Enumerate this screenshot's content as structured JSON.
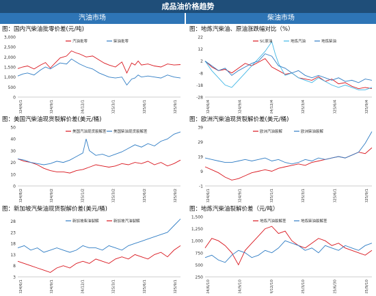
{
  "title": "成品油价格趋势",
  "sections": {
    "left": "汽油市场",
    "right": "柴油市场"
  },
  "colors": {
    "red": "#d9141c",
    "blue": "#2e7cc4",
    "lightblue": "#3fb6e6",
    "header": "#1f4e79",
    "subheader": "#2e75b6"
  },
  "chart_data": [
    {
      "id": "p1",
      "type": "line",
      "title": "图：国内汽柴油批零价差(元/吨)",
      "x_ticks": [
        "2024/6/1",
        "2024/9/1",
        "2024/12/1",
        "2025/3/1",
        "2025/6/1",
        "2025/9/1"
      ],
      "y_ticks": [
        "0",
        "500",
        "1,000",
        "1,500",
        "2,000",
        "2,500",
        "3,000"
      ],
      "ylim": [
        0,
        3000
      ],
      "x_range": [
        0,
        1
      ],
      "legend": [
        "汽油批零",
        "柴油批零"
      ],
      "series": [
        {
          "name": "汽油批零",
          "color": "#d9141c",
          "x": [
            0,
            0.03,
            0.06,
            0.1,
            0.14,
            0.17,
            0.2,
            0.23,
            0.26,
            0.3,
            0.33,
            0.36,
            0.38,
            0.42,
            0.46,
            0.5,
            0.53,
            0.56,
            0.6,
            0.64,
            0.67,
            0.7,
            0.72,
            0.74,
            0.76,
            0.8,
            0.84,
            0.88,
            0.92,
            0.96,
            1.0
          ],
          "y": [
            1420,
            1500,
            1550,
            1400,
            1600,
            1720,
            1450,
            1700,
            1950,
            2050,
            2300,
            2200,
            2150,
            2000,
            2050,
            1850,
            1700,
            1600,
            1500,
            1750,
            1200,
            1700,
            1600,
            1800,
            1600,
            1650,
            1550,
            1500,
            1650,
            1600,
            1620
          ]
        },
        {
          "name": "柴油批零",
          "color": "#2e7cc4",
          "x": [
            0,
            0.03,
            0.06,
            0.1,
            0.14,
            0.17,
            0.2,
            0.23,
            0.26,
            0.3,
            0.33,
            0.36,
            0.38,
            0.42,
            0.46,
            0.5,
            0.53,
            0.56,
            0.6,
            0.64,
            0.67,
            0.7,
            0.72,
            0.74,
            0.76,
            0.8,
            0.84,
            0.88,
            0.92,
            0.96,
            1.0
          ],
          "y": [
            1050,
            1150,
            1200,
            1100,
            1350,
            1500,
            1400,
            1550,
            1700,
            1650,
            1900,
            1750,
            1650,
            1500,
            1400,
            1200,
            1100,
            1000,
            950,
            1000,
            600,
            900,
            950,
            1100,
            1000,
            1050,
            1000,
            950,
            1100,
            1000,
            950
          ]
        }
      ]
    },
    {
      "id": "p2",
      "type": "line",
      "title": "图：地炼汽柴油、原油涨跌幅对比（%）",
      "x_ticks": [
        "2024/6/4",
        "2024/9/4",
        "2024/12/4",
        "2025/3/4",
        "2025/6/4",
        "2025/9/4"
      ],
      "y_ticks": [
        "-28",
        "-18",
        "-8",
        "2",
        "12",
        "22"
      ],
      "ylim": [
        -28,
        22
      ],
      "x_range": [
        0,
        1
      ],
      "legend": [
        "SC原油",
        "地炼汽油",
        "地炼柴油"
      ],
      "series": [
        {
          "name": "SC原油",
          "color": "#d9141c",
          "x": [
            0,
            0.04,
            0.08,
            0.12,
            0.16,
            0.2,
            0.24,
            0.28,
            0.32,
            0.36,
            0.4,
            0.44,
            0.48,
            0.52,
            0.56,
            0.6,
            0.64,
            0.68,
            0.72,
            0.76,
            0.8,
            0.84,
            0.88,
            0.92,
            0.96,
            1.0
          ],
          "y": [
            2,
            -3,
            -6,
            -5,
            -8,
            -4,
            0,
            -2,
            1,
            4,
            -3,
            -6,
            -9,
            -8,
            -12,
            -13,
            -14,
            -11,
            -15,
            -13,
            -17,
            -16,
            -19,
            -21,
            -20,
            -21
          ]
        },
        {
          "name": "地炼汽油",
          "color": "#3fb6e6",
          "x": [
            0,
            0.04,
            0.08,
            0.12,
            0.16,
            0.2,
            0.24,
            0.28,
            0.32,
            0.36,
            0.4,
            0.42,
            0.44,
            0.48,
            0.52,
            0.56,
            0.6,
            0.64,
            0.68,
            0.72,
            0.76,
            0.8,
            0.84,
            0.88,
            0.92,
            0.96,
            1.0
          ],
          "y": [
            2,
            -6,
            -12,
            -18,
            -20,
            -14,
            -8,
            -2,
            4,
            10,
            18,
            8,
            0,
            -10,
            -8,
            -12,
            -14,
            -16,
            -12,
            -15,
            -18,
            -20,
            -18,
            -20,
            -22,
            -22,
            -20
          ]
        },
        {
          "name": "地炼柴油",
          "color": "#2e7cc4",
          "x": [
            0,
            0.04,
            0.08,
            0.12,
            0.16,
            0.2,
            0.24,
            0.28,
            0.32,
            0.36,
            0.4,
            0.44,
            0.48,
            0.52,
            0.56,
            0.6,
            0.64,
            0.68,
            0.72,
            0.76,
            0.8,
            0.84,
            0.88,
            0.92,
            0.96,
            1.0
          ],
          "y": [
            2,
            -2,
            -6,
            -4,
            -10,
            -6,
            -3,
            0,
            2,
            8,
            6,
            -2,
            -4,
            -8,
            -6,
            -10,
            -12,
            -10,
            -12,
            -14,
            -12,
            -15,
            -14,
            -16,
            -13,
            -14
          ]
        }
      ]
    },
    {
      "id": "p3",
      "type": "line",
      "title": "图：美国汽柴油现货裂解价差(美元/桶)",
      "x_ticks": [
        "2024/8/2",
        "2024/9/2",
        "2025/1/2",
        "2025/3/2",
        "2025/6/2",
        "2025/9/2"
      ],
      "y_ticks": [
        "0",
        "10",
        "20",
        "30",
        "40",
        "50"
      ],
      "ylim": [
        0,
        50
      ],
      "x_range": [
        0,
        1
      ],
      "legend": [
        "美国汽油现货裂解差",
        "美国柴油现货裂解差"
      ],
      "series": [
        {
          "name": "美国汽油现货裂解差",
          "color": "#d9141c",
          "x": [
            0,
            0.04,
            0.08,
            0.12,
            0.16,
            0.2,
            0.24,
            0.28,
            0.32,
            0.36,
            0.4,
            0.44,
            0.48,
            0.52,
            0.56,
            0.6,
            0.64,
            0.68,
            0.72,
            0.76,
            0.8,
            0.84,
            0.88,
            0.92,
            0.96,
            1.0
          ],
          "y": [
            23,
            21,
            20,
            18,
            15,
            13,
            12,
            12,
            11,
            13,
            14,
            16,
            18,
            17,
            16,
            17,
            19,
            18,
            20,
            19,
            21,
            18,
            20,
            17,
            19,
            22
          ]
        },
        {
          "name": "美国柴油现货裂解差",
          "color": "#2e7cc4",
          "x": [
            0,
            0.04,
            0.08,
            0.12,
            0.16,
            0.2,
            0.24,
            0.28,
            0.32,
            0.36,
            0.4,
            0.42,
            0.44,
            0.48,
            0.52,
            0.56,
            0.6,
            0.64,
            0.68,
            0.72,
            0.76,
            0.8,
            0.84,
            0.88,
            0.92,
            0.96,
            1.0
          ],
          "y": [
            23,
            22,
            20,
            19,
            18,
            19,
            21,
            20,
            22,
            25,
            28,
            40,
            30,
            26,
            27,
            25,
            27,
            29,
            32,
            35,
            33,
            36,
            34,
            38,
            40,
            44,
            46
          ]
        }
      ]
    },
    {
      "id": "p4",
      "type": "line",
      "title": "图：欧洲汽柴油现货裂解价差(美元/桶)",
      "x_ticks": [
        "2024/6/1",
        "2024/9/1",
        "2025/1/1",
        "2025/3/1",
        "2025/6/1",
        "2025/9/1"
      ],
      "y_ticks": [
        "-1",
        "9",
        "19",
        "29",
        "39"
      ],
      "ylim": [
        -1,
        39
      ],
      "x_range": [
        0,
        1
      ],
      "legend": [
        "欧洲汽油裂解",
        "欧洲柴油裂解"
      ],
      "series": [
        {
          "name": "欧洲汽油裂解",
          "color": "#d9141c",
          "x": [
            0,
            0.04,
            0.08,
            0.12,
            0.16,
            0.2,
            0.24,
            0.28,
            0.32,
            0.36,
            0.4,
            0.44,
            0.48,
            0.52,
            0.56,
            0.6,
            0.64,
            0.68,
            0.72,
            0.76,
            0.8,
            0.84,
            0.88,
            0.92,
            0.96,
            1.0
          ],
          "y": [
            12,
            10,
            8,
            5,
            3,
            4,
            6,
            8,
            9,
            10,
            9,
            11,
            12,
            13,
            14,
            13,
            15,
            16,
            17,
            18,
            19,
            18,
            20,
            22,
            21,
            25
          ]
        },
        {
          "name": "欧洲柴油裂解",
          "color": "#2e7cc4",
          "x": [
            0,
            0.04,
            0.08,
            0.12,
            0.16,
            0.2,
            0.24,
            0.28,
            0.32,
            0.36,
            0.4,
            0.44,
            0.48,
            0.52,
            0.56,
            0.6,
            0.64,
            0.68,
            0.72,
            0.76,
            0.8,
            0.84,
            0.88,
            0.92,
            0.96,
            1.0
          ],
          "y": [
            18,
            17,
            16,
            15,
            15,
            16,
            17,
            16,
            17,
            18,
            16,
            17,
            15,
            14,
            15,
            17,
            16,
            18,
            17,
            18,
            19,
            18,
            20,
            22,
            28,
            36
          ]
        }
      ]
    },
    {
      "id": "p5",
      "type": "line",
      "title": "图：新加坡汽柴油现货裂解价差(美元/桶)",
      "x_ticks": [
        "2024/6/1",
        "2024/9/1",
        "2024/12/1",
        "2025/3/1",
        "2025/6/1",
        "2025/9/1"
      ],
      "y_ticks": [
        "3",
        "8",
        "13",
        "18",
        "23",
        "28"
      ],
      "ylim": [
        3,
        30
      ],
      "x_range": [
        0,
        1
      ],
      "legend": [
        "新加坡柴油裂解",
        "新加坡汽油裂解"
      ],
      "series": [
        {
          "name": "新加坡柴油裂解",
          "color": "#2e7cc4",
          "x": [
            0,
            0.04,
            0.08,
            0.12,
            0.16,
            0.2,
            0.24,
            0.28,
            0.32,
            0.36,
            0.4,
            0.44,
            0.48,
            0.52,
            0.56,
            0.6,
            0.64,
            0.68,
            0.72,
            0.76,
            0.8,
            0.84,
            0.88,
            0.92,
            0.96,
            1.0
          ],
          "y": [
            16,
            17,
            15,
            16,
            14,
            15,
            16,
            15,
            14,
            15,
            17,
            16,
            16,
            15,
            17,
            16,
            15,
            17,
            18,
            19,
            20,
            21,
            22,
            23,
            26,
            29
          ]
        },
        {
          "name": "新加坡汽油裂解",
          "color": "#d9141c",
          "x": [
            0,
            0.04,
            0.08,
            0.12,
            0.16,
            0.2,
            0.24,
            0.28,
            0.32,
            0.36,
            0.4,
            0.44,
            0.48,
            0.52,
            0.56,
            0.6,
            0.64,
            0.68,
            0.72,
            0.76,
            0.8,
            0.84,
            0.88,
            0.92,
            0.96,
            1.0
          ],
          "y": [
            10,
            9,
            8,
            7,
            6,
            5,
            7,
            8,
            7,
            9,
            10,
            9,
            11,
            10,
            9,
            11,
            12,
            11,
            13,
            12,
            11,
            13,
            14,
            12,
            15,
            17
          ]
        }
      ]
    },
    {
      "id": "p6",
      "type": "line",
      "title": "图：地炼汽柴油裂解价差（元/吨）",
      "x_ticks": [
        "2024/6/10",
        "2024/9/10",
        "2024/12/10",
        "2025/3/10",
        "2025/6/30",
        "2025/9/10"
      ],
      "y_ticks": [
        "250",
        "500",
        "750",
        "1,000",
        "1,250",
        "1,500"
      ],
      "ylim": [
        250,
        1500
      ],
      "x_range": [
        0,
        1
      ],
      "legend": [
        "地炼汽油裂解差",
        "地炼柴油裂解差"
      ],
      "series": [
        {
          "name": "地炼汽油裂解差",
          "color": "#d9141c",
          "x": [
            0,
            0.04,
            0.08,
            0.12,
            0.16,
            0.2,
            0.24,
            0.28,
            0.32,
            0.36,
            0.4,
            0.44,
            0.48,
            0.52,
            0.56,
            0.6,
            0.64,
            0.68,
            0.72,
            0.76,
            0.8,
            0.84,
            0.88,
            0.92,
            0.96,
            1.0
          ],
          "y": [
            850,
            1050,
            1000,
            900,
            750,
            500,
            800,
            950,
            1100,
            1250,
            1300,
            1150,
            1200,
            1000,
            900,
            850,
            950,
            1050,
            1000,
            900,
            950,
            850,
            800,
            750,
            700,
            800
          ]
        },
        {
          "name": "地炼柴油裂解差",
          "color": "#2e7cc4",
          "x": [
            0,
            0.04,
            0.08,
            0.12,
            0.16,
            0.2,
            0.24,
            0.28,
            0.32,
            0.36,
            0.4,
            0.44,
            0.48,
            0.52,
            0.56,
            0.6,
            0.64,
            0.68,
            0.72,
            0.76,
            0.8,
            0.84,
            0.88,
            0.92,
            0.96,
            1.0
          ],
          "y": [
            650,
            700,
            600,
            550,
            700,
            800,
            750,
            650,
            700,
            800,
            750,
            850,
            1000,
            950,
            900,
            800,
            850,
            750,
            900,
            850,
            800,
            900,
            850,
            800,
            900,
            950
          ]
        }
      ]
    }
  ]
}
